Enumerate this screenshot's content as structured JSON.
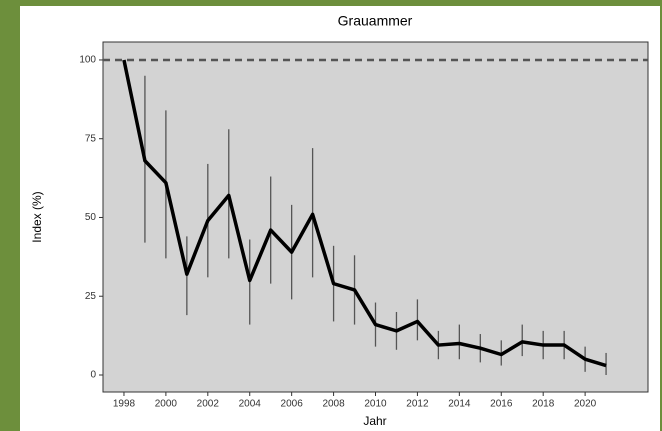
{
  "chart_data": {
    "type": "line",
    "title": "Grauammer",
    "xlabel": "Jahr",
    "ylabel": "Index (%)",
    "x": [
      1998,
      1999,
      2000,
      2001,
      2002,
      2003,
      2004,
      2005,
      2006,
      2007,
      2008,
      2009,
      2010,
      2011,
      2012,
      2013,
      2014,
      2015,
      2016,
      2017,
      2018,
      2019,
      2020,
      2021
    ],
    "series": [
      {
        "name": "Index",
        "color": "#000000",
        "values": [
          100,
          68,
          61,
          32,
          49,
          57,
          30,
          46,
          39,
          51,
          29,
          27,
          16,
          14,
          17,
          9.5,
          10,
          8.5,
          6.5,
          10.5,
          9.5,
          9.5,
          5,
          3
        ],
        "lower": [
          100,
          42,
          37,
          19,
          31,
          37,
          16,
          29,
          24,
          31,
          17,
          16,
          9,
          8,
          11,
          5,
          5,
          4,
          3,
          6,
          5,
          5,
          1,
          0
        ],
        "upper": [
          100,
          95,
          84,
          44,
          67,
          78,
          43,
          63,
          54,
          72,
          41,
          38,
          23,
          20,
          24,
          14,
          16,
          13,
          11,
          16,
          14,
          14,
          9,
          7
        ]
      }
    ],
    "reference_line": 100,
    "xlim": [
      1997,
      2023
    ],
    "xticks": [
      1998,
      2000,
      2002,
      2004,
      2006,
      2008,
      2010,
      2012,
      2014,
      2016,
      2018,
      2020
    ],
    "ylim": [
      -5.4,
      105.7
    ],
    "yticks": [
      0,
      25,
      50,
      75,
      100
    ],
    "grid": false
  }
}
